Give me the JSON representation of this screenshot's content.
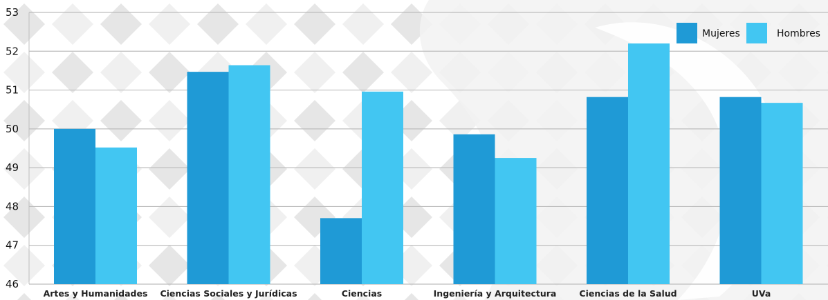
{
  "chart_data": {
    "type": "bar",
    "categories": [
      "Artes y Humanidades",
      "Ciencias Sociales y Jurídicas",
      "Ciencias",
      "Ingeniería y Arquitectura",
      "Ciencias de la Salud",
      "UVa"
    ],
    "series": [
      {
        "name": "Mujeres",
        "color": "#1f9ad6",
        "values": [
          50.0,
          51.47,
          47.7,
          49.86,
          50.82,
          50.82
        ]
      },
      {
        "name": "Hombres",
        "color": "#42c6f2",
        "values": [
          49.52,
          51.64,
          50.96,
          49.25,
          52.2,
          50.67
        ]
      }
    ],
    "ylim": [
      46,
      53
    ],
    "yticks": [
      "46",
      "47",
      "48",
      "49",
      "50",
      "51",
      "52",
      "53"
    ],
    "grid": true,
    "legend_position": "top-right",
    "background_watermark": true
  }
}
